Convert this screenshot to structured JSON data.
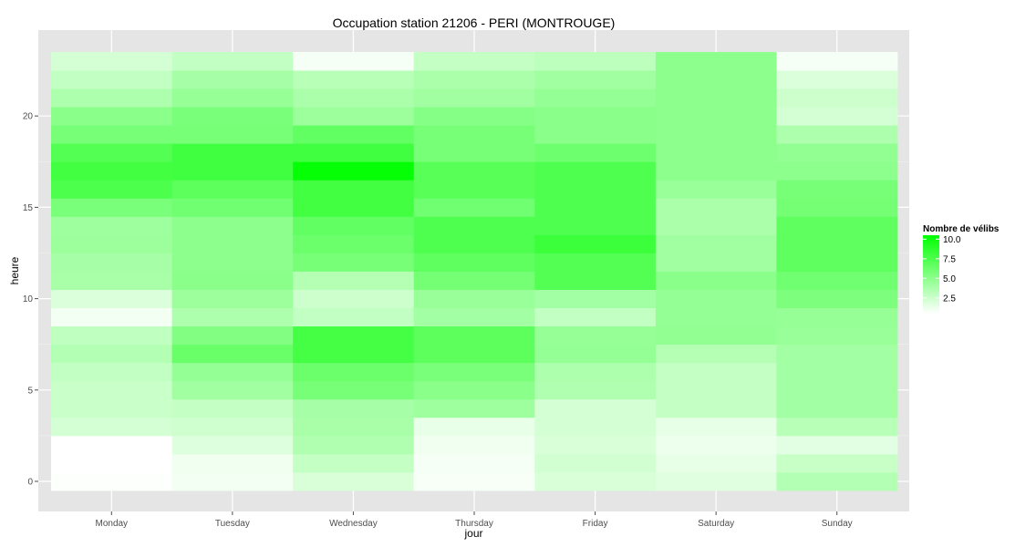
{
  "chart_data": {
    "type": "heatmap",
    "title": "Occupation station 21206 - PERI (MONTROUGE)",
    "xlabel": "jour",
    "ylabel": "heure",
    "categories": [
      "Monday",
      "Tuesday",
      "Wednesday",
      "Thursday",
      "Friday",
      "Saturday",
      "Sunday"
    ],
    "hours": [
      0,
      1,
      2,
      3,
      4,
      5,
      6,
      7,
      8,
      9,
      10,
      11,
      12,
      13,
      14,
      15,
      16,
      17,
      18,
      19,
      20,
      21,
      22,
      23
    ],
    "yticks": [
      0,
      5,
      10,
      15,
      20
    ],
    "ytick_labels": [
      "0",
      "5",
      "10",
      "15",
      "20"
    ],
    "ylim": [
      -0.5,
      23.5
    ],
    "legend": {
      "title": "Nombre de vélibs",
      "ticks": [
        2.5,
        5.0,
        7.5,
        10.0
      ],
      "tick_labels": [
        "2.5",
        "5.0",
        "7.5",
        "10.0"
      ],
      "min": 0.5,
      "max": 10.5,
      "low_color": "#ffffff",
      "high_color": "#00ff00"
    },
    "values": [
      [
        0.6,
        0.5,
        0.5,
        2.2,
        2.6,
        2.6,
        2.9,
        3.5,
        3.0,
        1.0,
        1.9,
        3.9,
        4.0,
        4.4,
        4.3,
        5.7,
        7.5,
        7.9,
        7.2,
        5.8,
        5.1,
        3.7,
        2.9,
        2.2
      ],
      [
        1.0,
        1.1,
        1.8,
        2.4,
        2.8,
        4.2,
        4.7,
        6.4,
        5.4,
        3.7,
        4.4,
        5.1,
        5.0,
        5.0,
        5.0,
        6.1,
        6.9,
        8.0,
        8.0,
        5.8,
        5.7,
        4.6,
        4.0,
        2.9
      ],
      [
        2.0,
        2.8,
        3.6,
        3.9,
        4.0,
        5.8,
        6.3,
        7.8,
        7.8,
        2.9,
        2.5,
        3.4,
        5.8,
        6.3,
        6.7,
        7.9,
        7.9,
        10.3,
        8.0,
        6.7,
        4.4,
        3.8,
        3.3,
        0.9
      ],
      [
        0.8,
        0.9,
        1.1,
        1.4,
        4.3,
        5.1,
        5.7,
        6.9,
        6.9,
        4.1,
        4.5,
        5.9,
        6.8,
        7.4,
        7.4,
        6.1,
        7.1,
        7.1,
        5.8,
        5.8,
        5.3,
        4.2,
        3.8,
        2.8
      ],
      [
        2.0,
        2.3,
        2.0,
        2.2,
        2.2,
        3.6,
        3.7,
        4.7,
        4.6,
        2.9,
        4.1,
        7.3,
        7.3,
        8.2,
        7.4,
        7.4,
        7.4,
        7.4,
        6.2,
        5.1,
        5.1,
        4.7,
        4.2,
        3.1
      ],
      [
        1.7,
        1.5,
        1.2,
        1.5,
        2.8,
        2.8,
        2.8,
        3.4,
        4.8,
        4.7,
        4.7,
        5.1,
        4.2,
        4.2,
        3.8,
        3.8,
        4.5,
        5.0,
        5.0,
        5.0,
        5.0,
        5.0,
        5.0,
        5.0
      ],
      [
        3.5,
        2.7,
        1.6,
        3.3,
        4.1,
        4.1,
        4.1,
        4.1,
        4.5,
        4.6,
        5.6,
        6.1,
        6.8,
        6.8,
        6.8,
        5.9,
        5.8,
        5.0,
        4.8,
        3.7,
        2.2,
        2.5,
        1.9,
        0.9
      ]
    ]
  }
}
